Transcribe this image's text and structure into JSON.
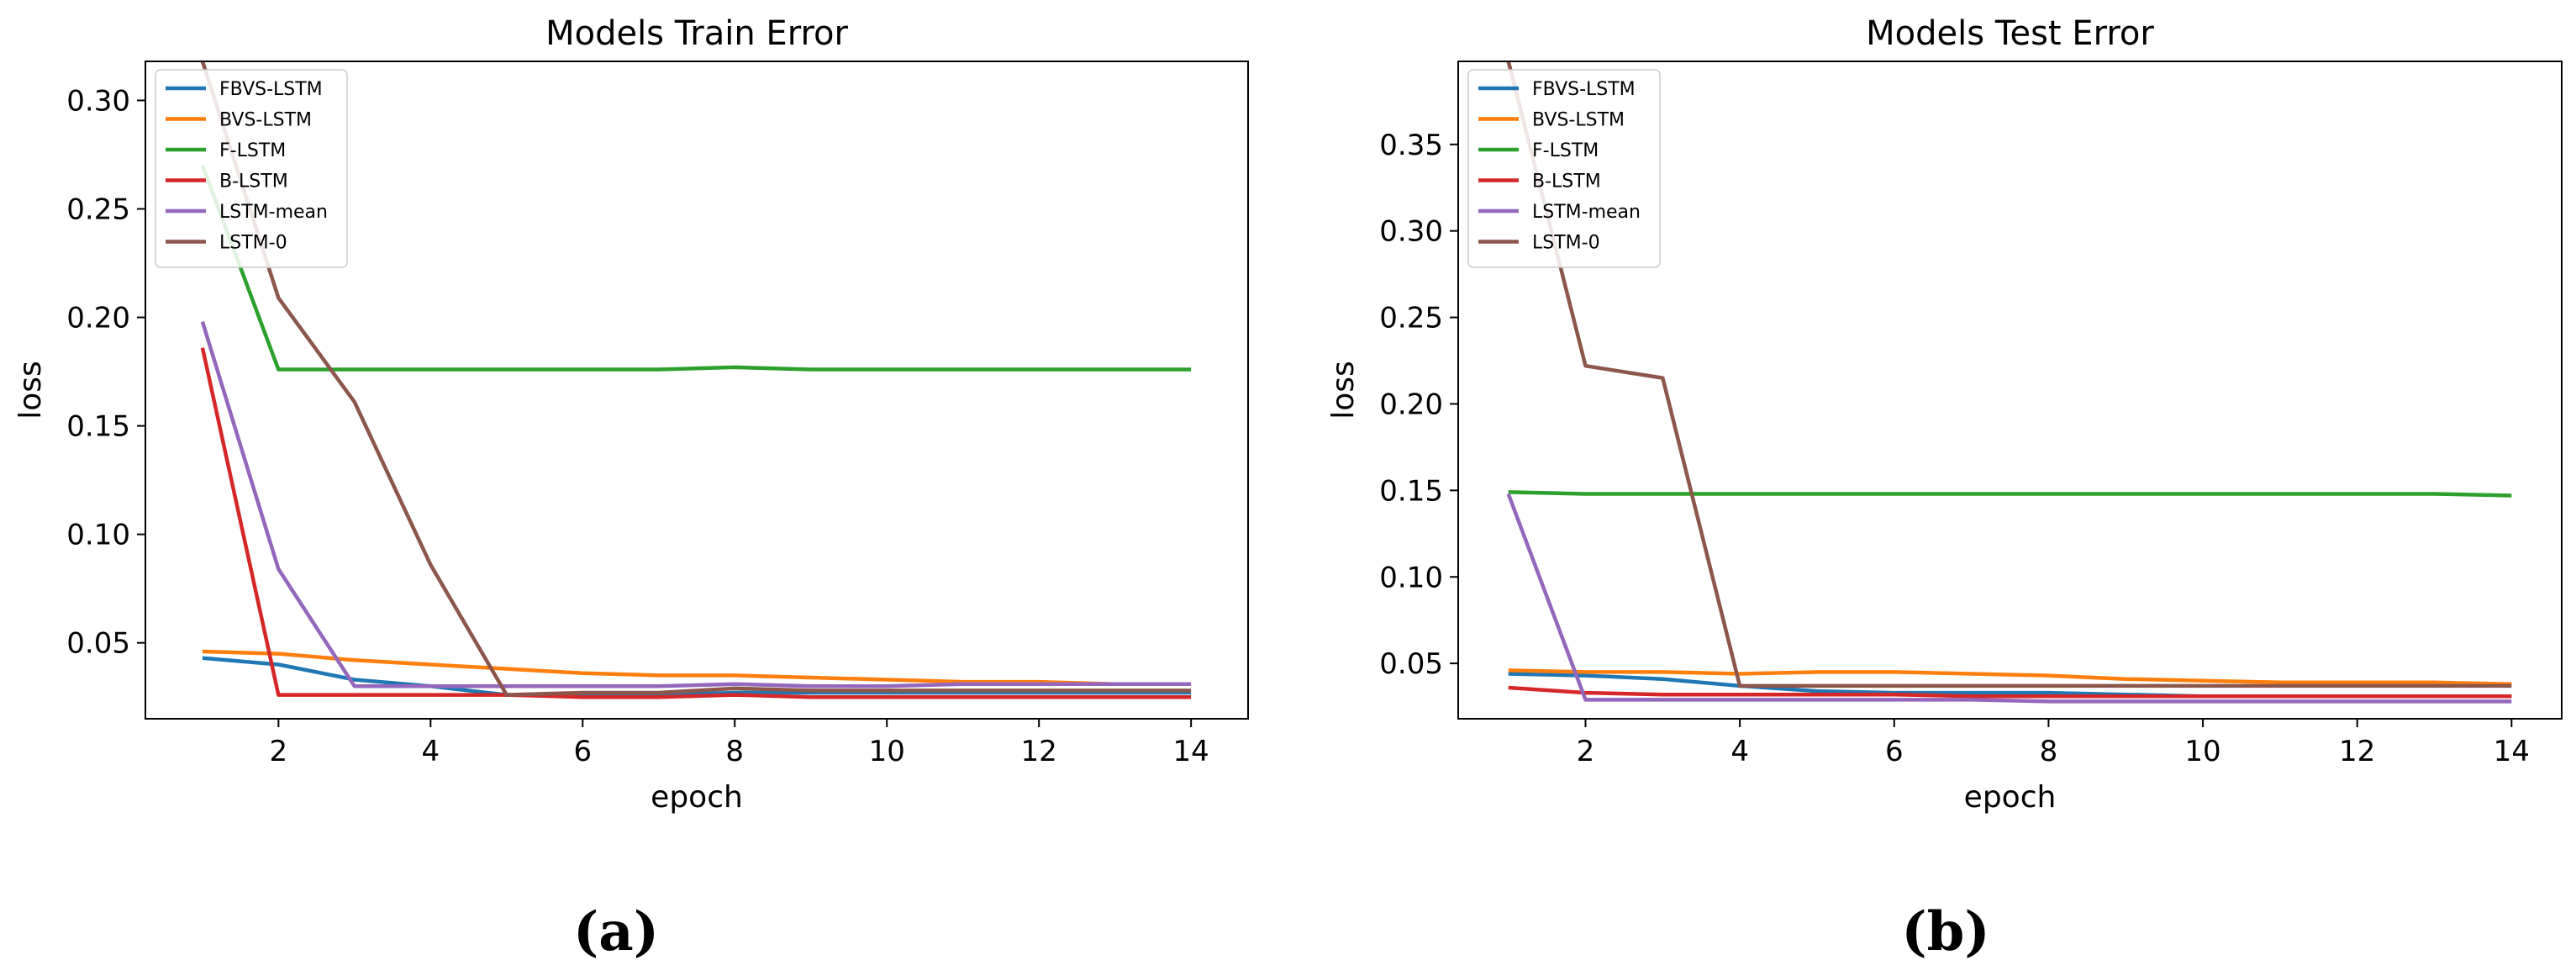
{
  "chart_data": [
    {
      "type": "line",
      "title": "Models Train Error",
      "xlabel": "epoch",
      "ylabel": "loss",
      "xlim": [
        0.25,
        14.75
      ],
      "ylim": [
        0.015,
        0.318
      ],
      "xticks": [
        2,
        4,
        6,
        8,
        10,
        12,
        14
      ],
      "yticks": [
        0.05,
        0.1,
        0.15,
        0.2,
        0.25,
        0.3
      ],
      "ytick_labels": [
        "0.05",
        "0.10",
        "0.15",
        "0.20",
        "0.25",
        "0.30"
      ],
      "legend_position": "top-left",
      "grid": false,
      "sublabel": "(a)",
      "x": [
        1,
        2,
        3,
        4,
        5,
        6,
        7,
        8,
        9,
        10,
        11,
        12,
        13,
        14
      ],
      "series": [
        {
          "name": "FBVS-LSTM",
          "color": "#1f77b4",
          "values": [
            0.043,
            0.04,
            0.033,
            0.03,
            0.026,
            0.026,
            0.026,
            0.027,
            0.027,
            0.027,
            0.027,
            0.027,
            0.027,
            0.027
          ]
        },
        {
          "name": "BVS-LSTM",
          "color": "#ff7f0e",
          "values": [
            0.046,
            0.045,
            0.042,
            0.04,
            0.038,
            0.036,
            0.035,
            0.035,
            0.034,
            0.033,
            0.032,
            0.032,
            0.031,
            0.031
          ]
        },
        {
          "name": "F-LSTM",
          "color": "#2ca02c",
          "values": [
            0.27,
            0.176,
            0.176,
            0.176,
            0.176,
            0.176,
            0.176,
            0.177,
            0.176,
            0.176,
            0.176,
            0.176,
            0.176,
            0.176
          ]
        },
        {
          "name": "B-LSTM",
          "color": "#d62728",
          "values": [
            0.186,
            0.026,
            0.026,
            0.026,
            0.026,
            0.025,
            0.025,
            0.026,
            0.025,
            0.025,
            0.025,
            0.025,
            0.025,
            0.025
          ]
        },
        {
          "name": "LSTM-mean",
          "color": "#9467bd",
          "values": [
            0.198,
            0.084,
            0.03,
            0.03,
            0.03,
            0.03,
            0.03,
            0.031,
            0.03,
            0.03,
            0.031,
            0.031,
            0.031,
            0.031
          ]
        },
        {
          "name": "LSTM-0",
          "color": "#8c564b",
          "values": [
            0.318,
            0.209,
            0.161,
            0.086,
            0.026,
            0.027,
            0.027,
            0.029,
            0.028,
            0.028,
            0.028,
            0.028,
            0.028,
            0.028
          ]
        }
      ]
    },
    {
      "type": "line",
      "title": "Models Test Error",
      "xlabel": "epoch",
      "ylabel": "loss",
      "xlim": [
        0.35,
        14.65
      ],
      "ylim": [
        0.018,
        0.398
      ],
      "xticks": [
        2,
        4,
        6,
        8,
        10,
        12,
        14
      ],
      "yticks": [
        0.05,
        0.1,
        0.15,
        0.2,
        0.25,
        0.3,
        0.35
      ],
      "ytick_labels": [
        "0.05",
        "0.10",
        "0.15",
        "0.20",
        "0.25",
        "0.30",
        "0.35"
      ],
      "legend_position": "top-left",
      "grid": false,
      "sublabel": "(b)",
      "x": [
        1,
        2,
        3,
        4,
        5,
        6,
        7,
        8,
        9,
        10,
        11,
        12,
        13,
        14
      ],
      "series": [
        {
          "name": "FBVS-LSTM",
          "color": "#1f77b4",
          "values": [
            0.044,
            0.043,
            0.041,
            0.037,
            0.034,
            0.033,
            0.033,
            0.033,
            0.032,
            0.031,
            0.031,
            0.031,
            0.031,
            0.031
          ]
        },
        {
          "name": "BVS-LSTM",
          "color": "#ff7f0e",
          "values": [
            0.046,
            0.045,
            0.045,
            0.044,
            0.045,
            0.045,
            0.044,
            0.043,
            0.041,
            0.04,
            0.039,
            0.039,
            0.039,
            0.038
          ]
        },
        {
          "name": "F-LSTM",
          "color": "#2ca02c",
          "values": [
            0.149,
            0.148,
            0.148,
            0.148,
            0.148,
            0.148,
            0.148,
            0.148,
            0.148,
            0.148,
            0.148,
            0.148,
            0.148,
            0.147
          ]
        },
        {
          "name": "B-LSTM",
          "color": "#d62728",
          "values": [
            0.036,
            0.033,
            0.032,
            0.032,
            0.032,
            0.032,
            0.031,
            0.031,
            0.031,
            0.031,
            0.031,
            0.031,
            0.031,
            0.031
          ]
        },
        {
          "name": "LSTM-mean",
          "color": "#9467bd",
          "values": [
            0.148,
            0.029,
            0.029,
            0.029,
            0.029,
            0.029,
            0.029,
            0.028,
            0.028,
            0.028,
            0.028,
            0.028,
            0.028,
            0.028
          ]
        },
        {
          "name": "LSTM-0",
          "color": "#8c564b",
          "values": [
            0.398,
            0.222,
            0.215,
            0.037,
            0.037,
            0.037,
            0.037,
            0.037,
            0.037,
            0.037,
            0.037,
            0.037,
            0.037,
            0.037
          ]
        }
      ]
    }
  ]
}
